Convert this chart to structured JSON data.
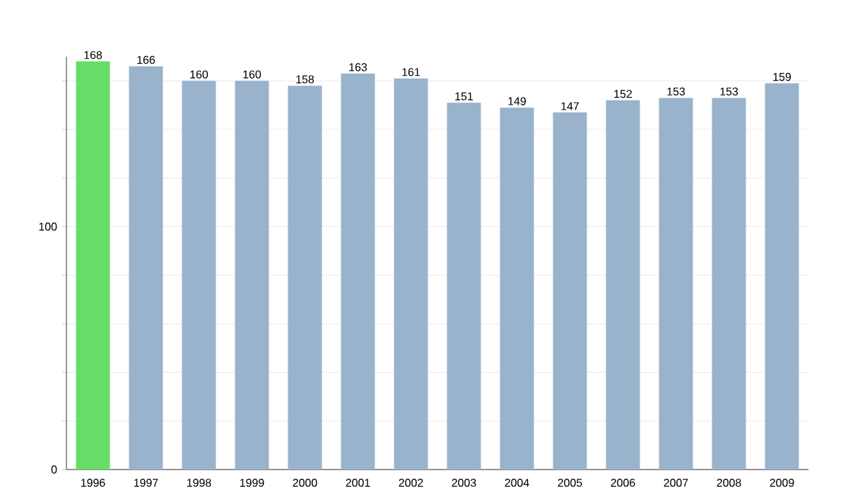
{
  "chart_data": {
    "type": "bar",
    "categories": [
      "1996",
      "1997",
      "1998",
      "1999",
      "2000",
      "2001",
      "2002",
      "2003",
      "2004",
      "2005",
      "2006",
      "2007",
      "2008",
      "2009"
    ],
    "values": [
      168,
      166,
      160,
      160,
      158,
      163,
      161,
      151,
      149,
      147,
      152,
      153,
      153,
      159
    ],
    "colors": [
      "#66dd66",
      "#9ab3cc",
      "#9ab3cc",
      "#9ab3cc",
      "#9ab3cc",
      "#9ab3cc",
      "#9ab3cc",
      "#9ab3cc",
      "#9ab3cc",
      "#9ab3cc",
      "#9ab3cc",
      "#9ab3cc",
      "#9ab3cc",
      "#9ab3cc"
    ],
    "ylim": [
      0,
      170
    ],
    "yticks": [
      0,
      {
        "value": 20,
        "label": null
      },
      {
        "value": 40,
        "label": null
      },
      {
        "value": 60,
        "label": null
      },
      {
        "value": 80,
        "label": null
      },
      100,
      {
        "value": 120,
        "label": null
      },
      {
        "value": 140,
        "label": null
      },
      {
        "value": 160,
        "label": null
      }
    ],
    "grid": "y",
    "data_labels": true
  }
}
